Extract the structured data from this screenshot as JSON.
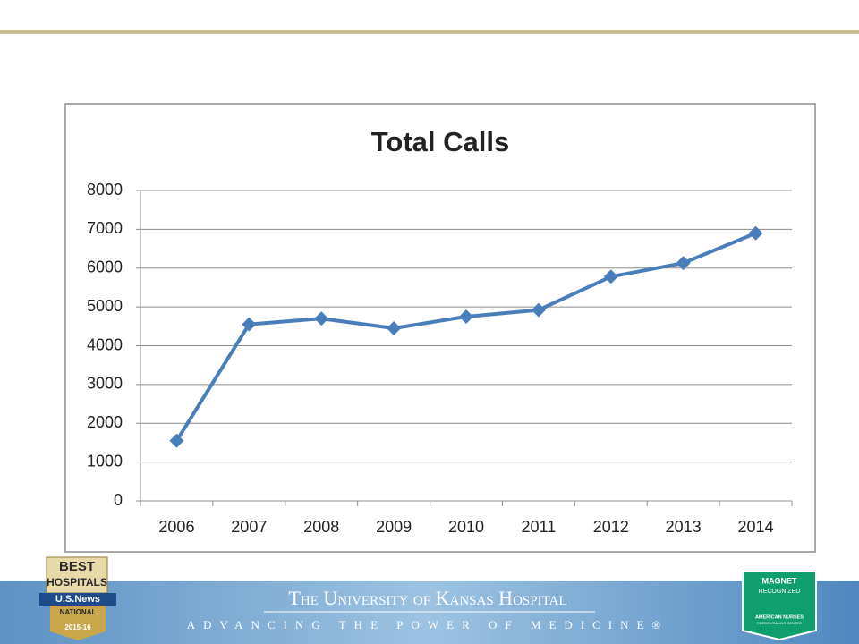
{
  "chart_data": {
    "type": "line",
    "title": "Total Calls",
    "categories": [
      "2006",
      "2007",
      "2008",
      "2009",
      "2010",
      "2011",
      "2012",
      "2013",
      "2014"
    ],
    "series": [
      {
        "name": "Total Calls",
        "color": "#4a7ebb",
        "values": [
          1550,
          4550,
          4700,
          4450,
          4750,
          4920,
          5780,
          6130,
          6900
        ]
      }
    ],
    "ylim": [
      0,
      8000
    ],
    "yticks": [
      0,
      1000,
      2000,
      3000,
      4000,
      5000,
      6000,
      7000,
      8000
    ],
    "grid": true
  },
  "footer": {
    "title": "The University of Kansas Hospital",
    "tagline": "ADVANCING THE POWER OF MEDICINE®"
  },
  "badge_left": {
    "line1": "BEST",
    "line2": "HOSPITALS",
    "brand": "U.S.News",
    "rank": "NATIONAL",
    "year": "2015-16"
  },
  "badge_right": {
    "line1": "MAGNET",
    "line2": "RECOGNIZED",
    "line3": "AMERICAN NURSES",
    "line4": "CREDENTIALING CENTER"
  }
}
